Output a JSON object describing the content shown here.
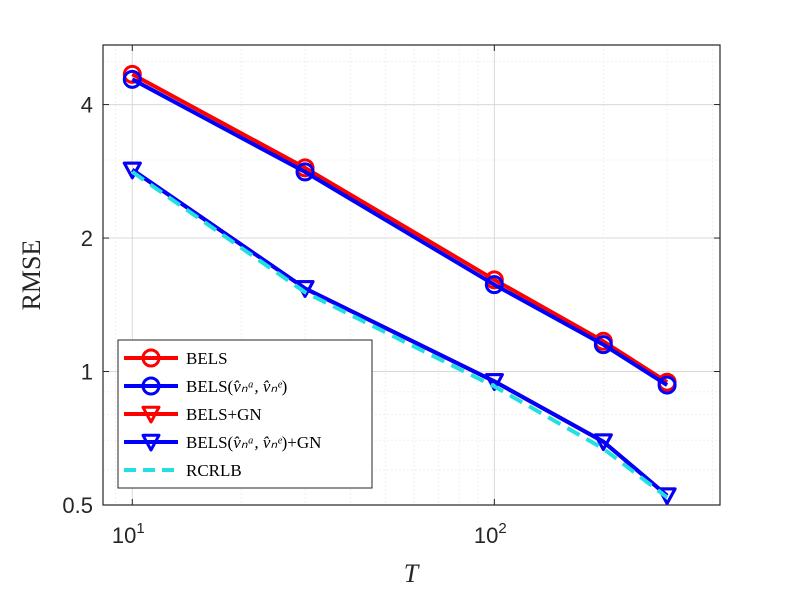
{
  "chart_data": {
    "type": "line",
    "xscale": "log",
    "yscale": "log",
    "xlabel": "T",
    "ylabel": "RMSE",
    "xlim": [
      8.3,
      420
    ],
    "ylim": [
      0.5,
      5.45
    ],
    "grid": true,
    "legend_position": "bottom-left",
    "x": [
      10,
      30,
      100,
      200,
      300
    ],
    "xticks": [
      {
        "value": 10,
        "base": "10",
        "exp": "1"
      },
      {
        "value": 100,
        "base": "10",
        "exp": "2"
      }
    ],
    "yticks": [
      {
        "value": 0.5,
        "label": "0.5"
      },
      {
        "value": 1,
        "label": "1"
      },
      {
        "value": 2,
        "label": "2"
      },
      {
        "value": 4,
        "label": "4"
      }
    ],
    "series": [
      {
        "name": "BELS",
        "label_main": "BELS",
        "label_sub": "",
        "label_suffix": "",
        "color": "#ff0000",
        "marker": "circle",
        "dashed": false,
        "values": [
          4.68,
          2.88,
          1.61,
          1.17,
          0.946
        ]
      },
      {
        "name": "BELS(v̂ₙᵃ, v̂ₙᵉ)",
        "label_main": "BELS(",
        "label_sub": "v̂ₙᵃ, v̂ₙᵉ",
        "label_suffix": ")",
        "color": "#0000ff",
        "marker": "circle",
        "dashed": false,
        "values": [
          4.56,
          2.82,
          1.57,
          1.15,
          0.932
        ]
      },
      {
        "name": "BELS+GN",
        "label_main": "BELS+GN",
        "label_sub": "",
        "label_suffix": "",
        "color": "#ff0000",
        "marker": "triangle-down",
        "dashed": false,
        "values": [
          2.85,
          1.54,
          0.95,
          0.695,
          0.525
        ]
      },
      {
        "name": "BELS(v̂ₙᵃ, v̂ₙᵉ)+GN",
        "label_main": "BELS(",
        "label_sub": "v̂ₙᵃ, v̂ₙᵉ",
        "label_suffix": ")+GN",
        "color": "#0000ff",
        "marker": "triangle-down",
        "dashed": false,
        "values": [
          2.85,
          1.54,
          0.95,
          0.695,
          0.525
        ]
      },
      {
        "name": "RCRLB",
        "label_main": "RCRLB",
        "label_sub": "",
        "label_suffix": "",
        "color": "#22e0e0",
        "marker": "none",
        "dashed": true,
        "values": [
          2.82,
          1.51,
          0.925,
          0.67,
          0.52
        ]
      }
    ]
  }
}
